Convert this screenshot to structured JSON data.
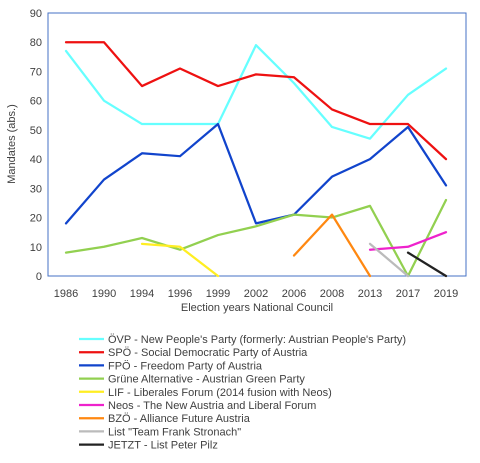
{
  "chart_data": {
    "type": "line",
    "xlabel": "Election years National Council",
    "ylabel": "Mandates (abs.)",
    "ylim": [
      0,
      90
    ],
    "yticks": [
      0,
      10,
      20,
      30,
      40,
      50,
      60,
      70,
      80,
      90
    ],
    "categories": [
      "1986",
      "1990",
      "1994",
      "1996",
      "1999",
      "2002",
      "2006",
      "2008",
      "2013",
      "2017",
      "2019"
    ],
    "grid": false,
    "legend_position": "bottom",
    "series": [
      {
        "name": "ÖVP - New People's Party (formerly: Austrian People's Party)",
        "color": "#66ffff",
        "values": [
          77,
          60,
          52,
          52,
          52,
          79,
          66,
          51,
          47,
          62,
          71
        ]
      },
      {
        "name": "SPÖ - Social Democratic Party of Austria",
        "color": "#ee1111",
        "values": [
          80,
          80,
          65,
          71,
          65,
          69,
          68,
          57,
          52,
          52,
          40
        ]
      },
      {
        "name": "FPÖ - Freedom Party of Austria",
        "color": "#1144cc",
        "values": [
          18,
          33,
          42,
          41,
          52,
          18,
          21,
          34,
          40,
          51,
          31
        ]
      },
      {
        "name": "Grüne Alternative - Austrian Green Party",
        "color": "#92d050",
        "values": [
          8,
          10,
          13,
          9,
          14,
          17,
          21,
          20,
          24,
          0,
          26
        ]
      },
      {
        "name": "LIF - Liberales Forum (2014 fusion with Neos)",
        "color": "#ffee22",
        "values": [
          null,
          null,
          11,
          10,
          0,
          null,
          null,
          null,
          null,
          null,
          null
        ]
      },
      {
        "name": "Neos - The New Austria and Liberal Forum",
        "color": "#ee22cc",
        "values": [
          null,
          null,
          null,
          null,
          null,
          null,
          null,
          null,
          9,
          10,
          15
        ]
      },
      {
        "name": "BZÖ - Alliance Future Austria",
        "color": "#ff8811",
        "values": [
          null,
          null,
          null,
          null,
          null,
          null,
          7,
          21,
          0,
          null,
          null
        ]
      },
      {
        "name": "List \"Team Frank Stronach\"",
        "color": "#bbbbbb",
        "values": [
          null,
          null,
          null,
          null,
          null,
          null,
          null,
          null,
          11,
          0,
          null
        ]
      },
      {
        "name": "JETZT - List Peter Pilz",
        "color": "#222222",
        "values": [
          null,
          null,
          null,
          null,
          null,
          null,
          null,
          null,
          null,
          8,
          0
        ]
      }
    ]
  }
}
